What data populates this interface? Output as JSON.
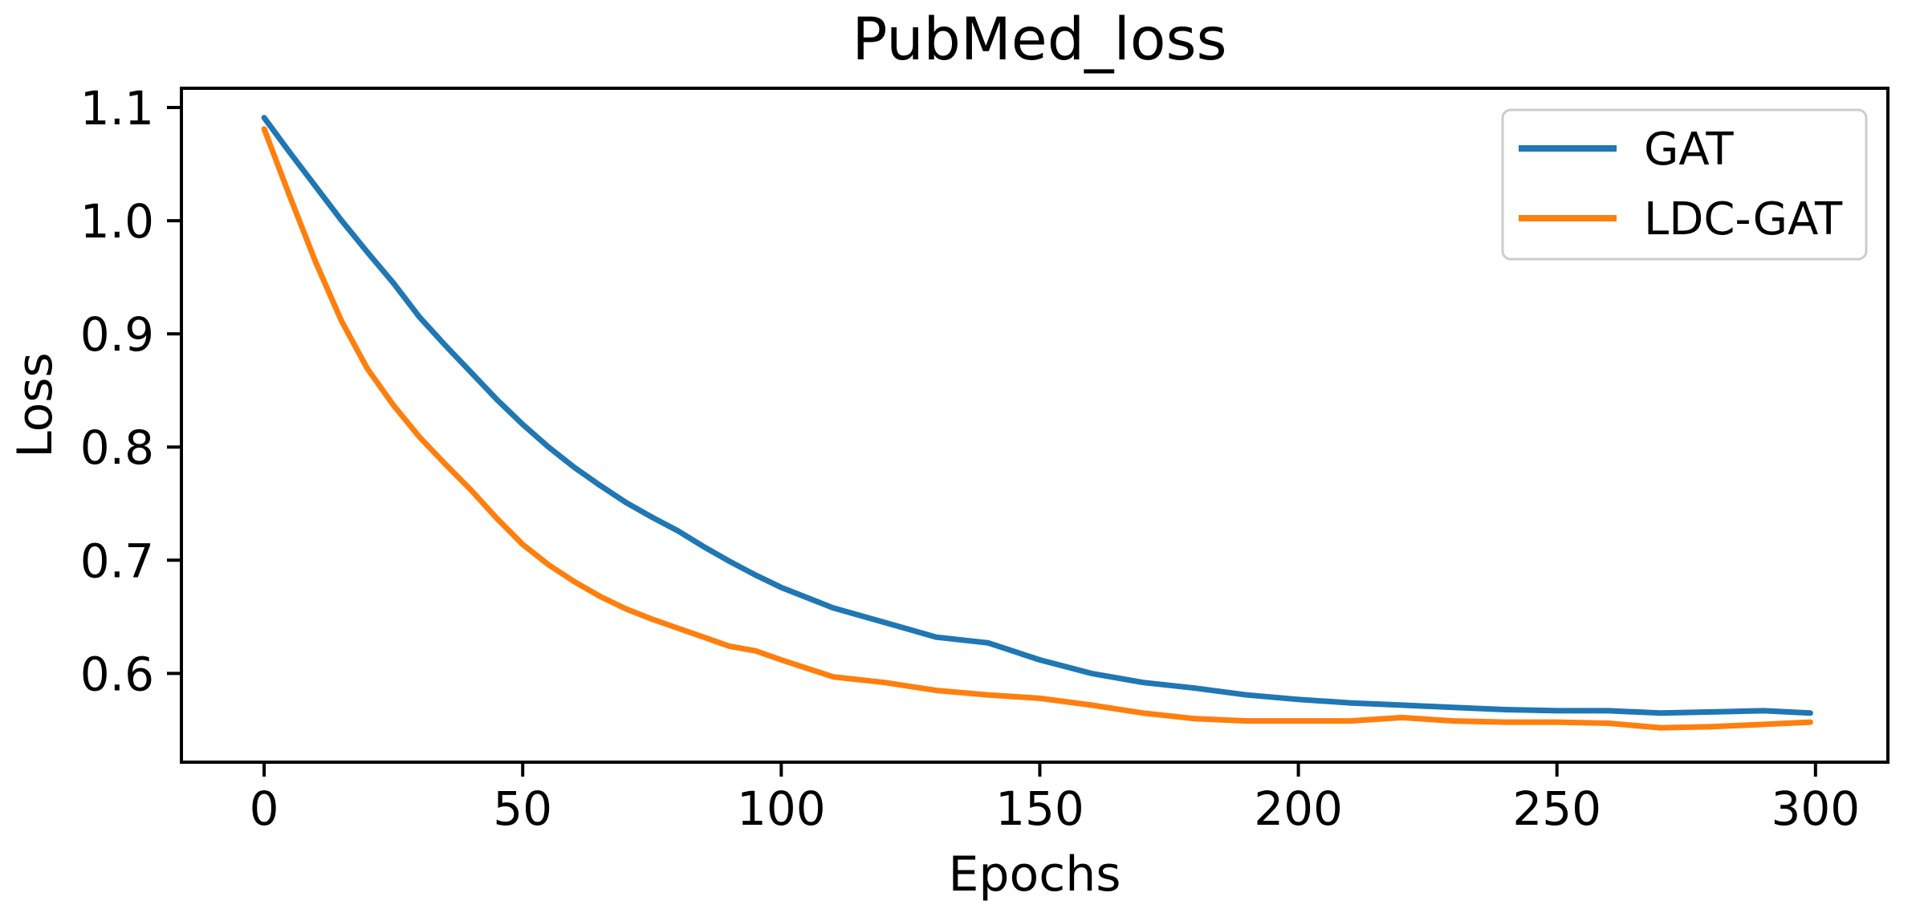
{
  "chart_data": {
    "type": "line",
    "title": "PubMed_loss",
    "xlabel": "Epochs",
    "ylabel": "Loss",
    "background": "#ffffff",
    "axis_color": "#000000",
    "grid": false,
    "legend_position": "upper right",
    "xlim": [
      -16,
      314
    ],
    "ylim": [
      0.5216,
      1.117
    ],
    "xticks": [
      0,
      50,
      100,
      150,
      200,
      250,
      300
    ],
    "xtick_labels": [
      "0",
      "50",
      "100",
      "150",
      "200",
      "250",
      "300"
    ],
    "yticks": [
      0.6,
      0.7,
      0.8,
      0.9,
      1.0,
      1.1
    ],
    "ytick_labels": [
      "0.6",
      "0.7",
      "0.8",
      "0.9",
      "1.0",
      "1.1"
    ],
    "x": [
      0,
      5,
      10,
      15,
      20,
      25,
      30,
      35,
      40,
      45,
      50,
      55,
      60,
      65,
      70,
      75,
      80,
      85,
      90,
      95,
      100,
      110,
      120,
      130,
      140,
      150,
      160,
      170,
      180,
      190,
      200,
      210,
      220,
      230,
      240,
      250,
      260,
      270,
      280,
      290,
      299
    ],
    "series": [
      {
        "name": "GAT",
        "color": "#1f77b4",
        "values": [
          1.091,
          1.06,
          1.03,
          1.0,
          0.972,
          0.945,
          0.915,
          0.89,
          0.866,
          0.842,
          0.82,
          0.8,
          0.782,
          0.766,
          0.751,
          0.738,
          0.726,
          0.712,
          0.699,
          0.687,
          0.676,
          0.658,
          0.645,
          0.632,
          0.627,
          0.612,
          0.6,
          0.592,
          0.587,
          0.581,
          0.577,
          0.574,
          0.572,
          0.57,
          0.568,
          0.567,
          0.567,
          0.565,
          0.566,
          0.567,
          0.565
        ]
      },
      {
        "name": "LDC-GAT",
        "color": "#ff7f0e",
        "values": [
          1.081,
          1.021,
          0.963,
          0.911,
          0.869,
          0.837,
          0.809,
          0.785,
          0.762,
          0.737,
          0.714,
          0.696,
          0.681,
          0.668,
          0.657,
          0.648,
          0.64,
          0.632,
          0.624,
          0.62,
          0.612,
          0.597,
          0.592,
          0.585,
          0.581,
          0.578,
          0.572,
          0.565,
          0.56,
          0.558,
          0.558,
          0.558,
          0.561,
          0.558,
          0.557,
          0.557,
          0.556,
          0.552,
          0.553,
          0.555,
          0.557
        ]
      }
    ]
  }
}
